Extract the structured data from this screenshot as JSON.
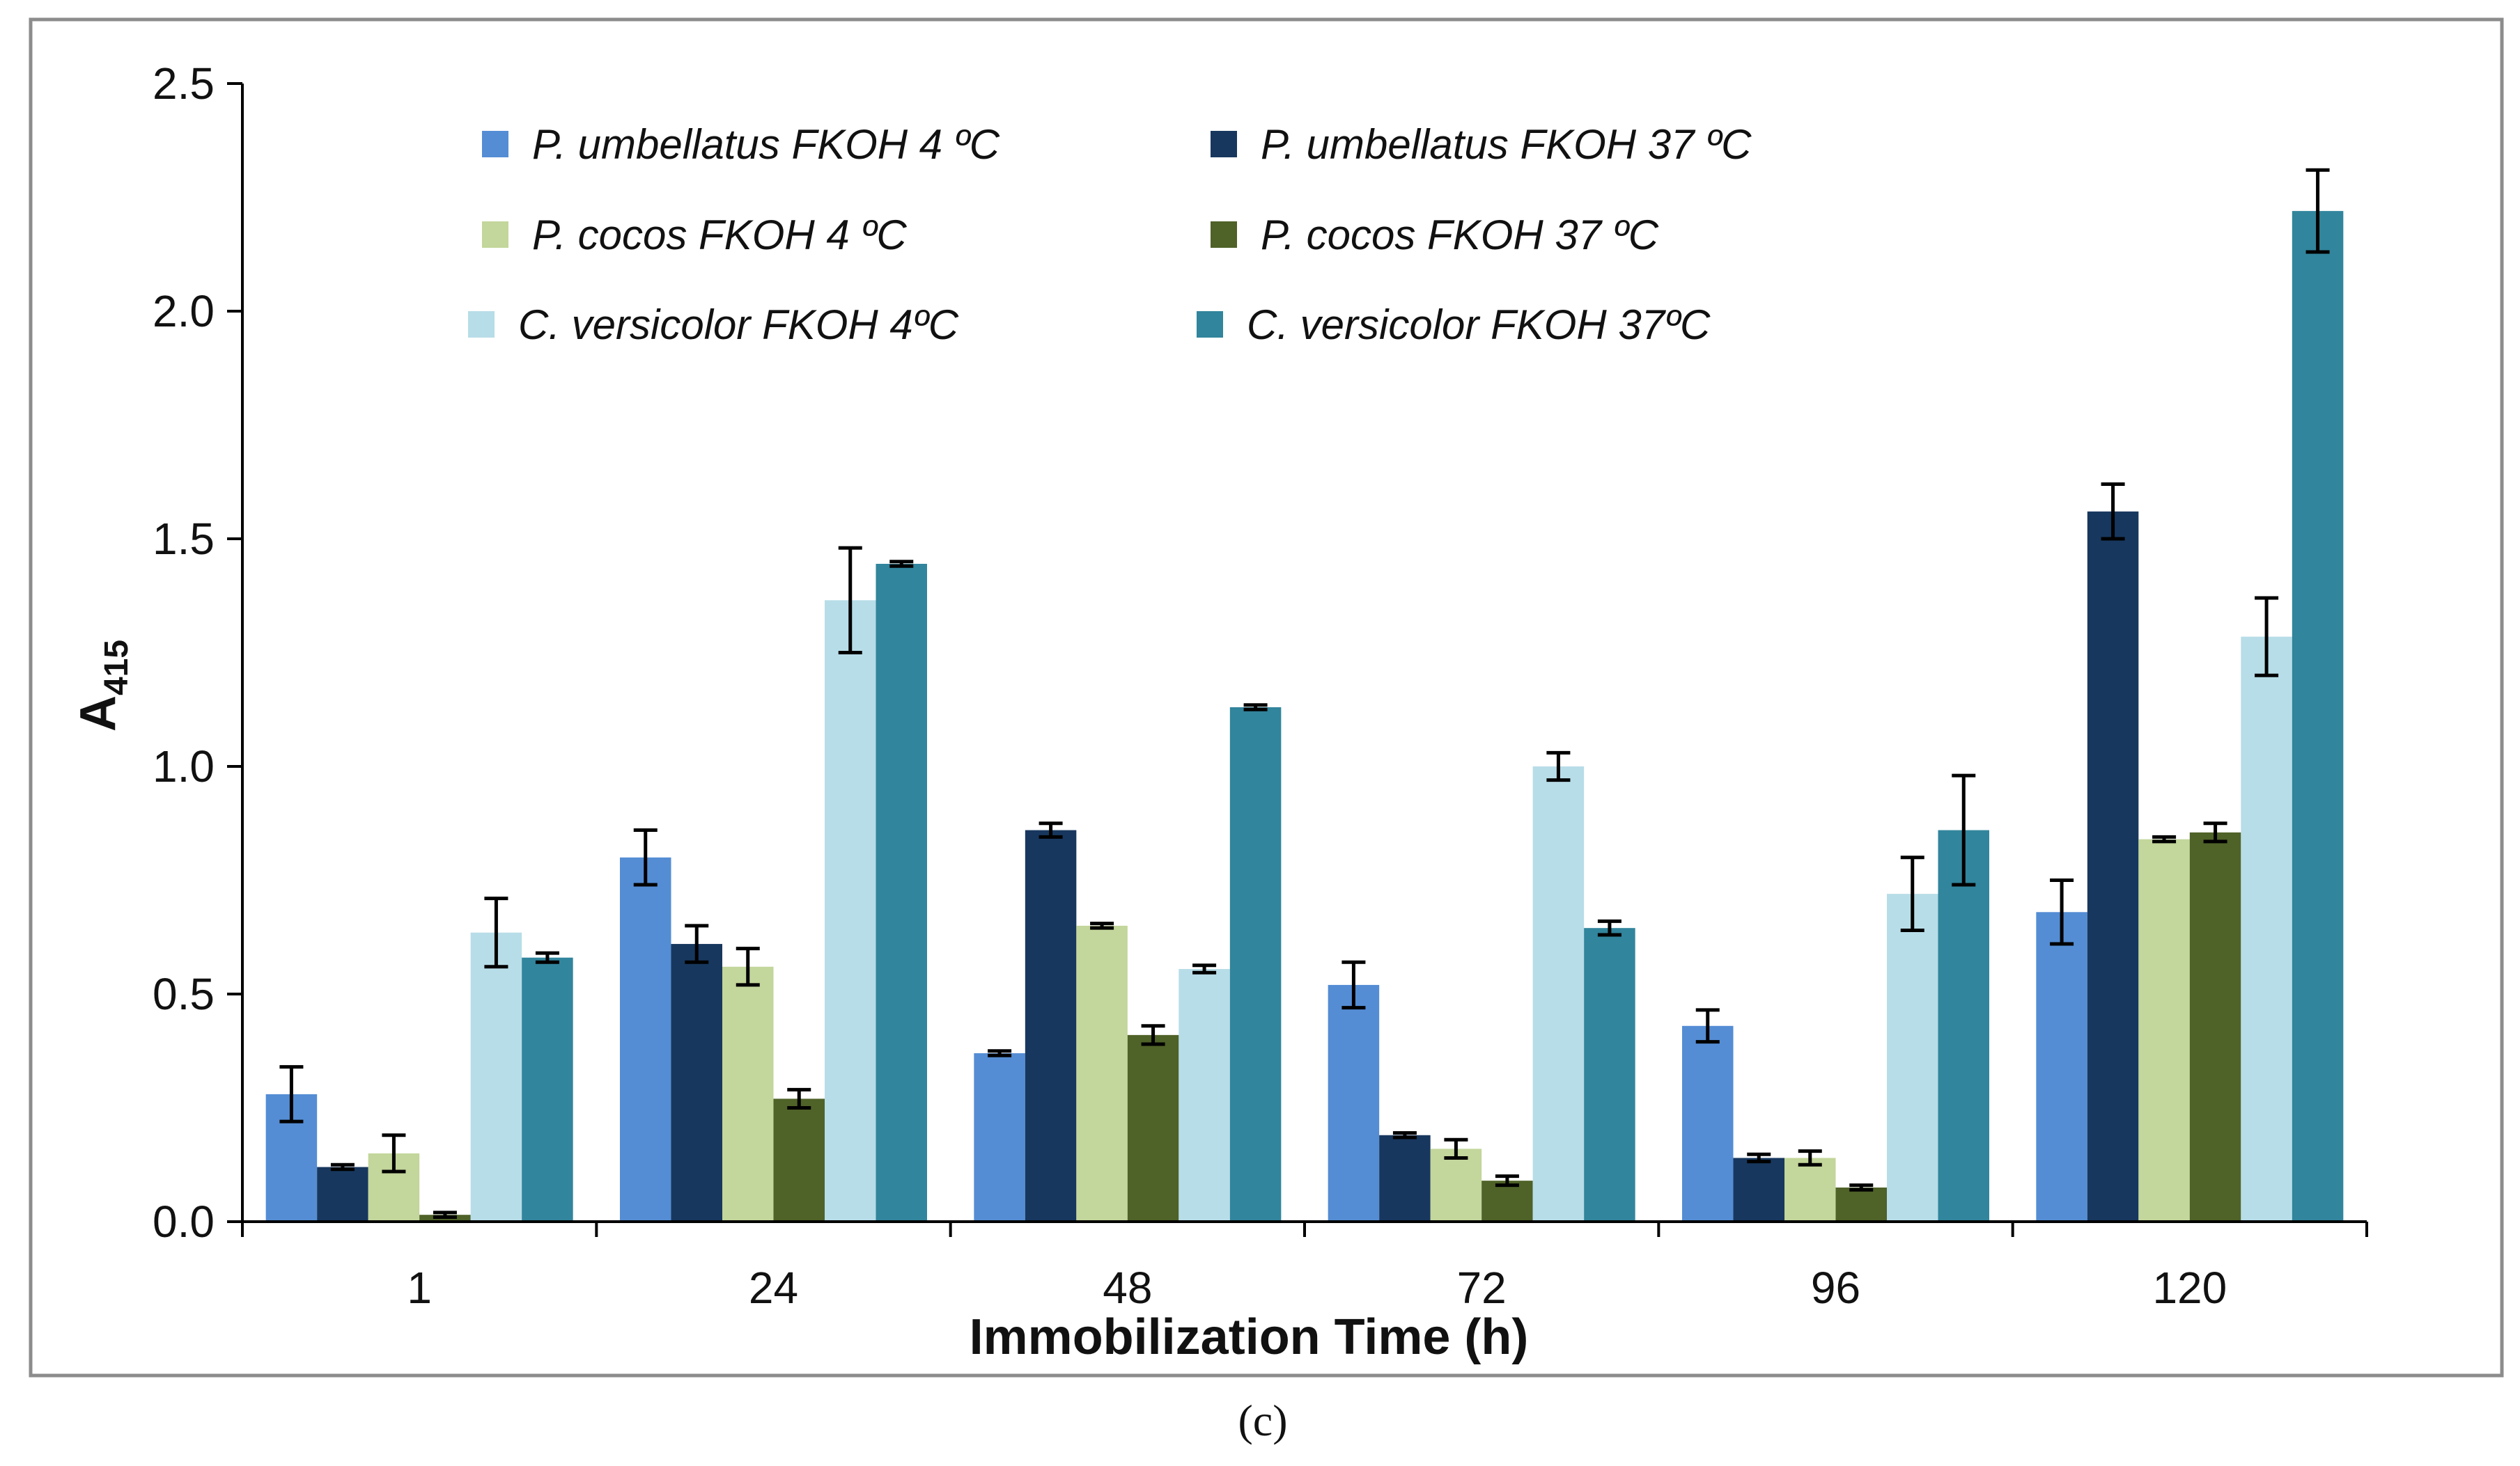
{
  "chart_data": {
    "type": "bar",
    "title": "",
    "xlabel": "Immobilization Time (h)",
    "ylabel_main": "A",
    "ylabel_sub": "415",
    "ylim": [
      0,
      2.5
    ],
    "yticks": [
      "0.0",
      "0.5",
      "1.0",
      "1.5",
      "2.0",
      "2.5"
    ],
    "ytick_values": [
      0,
      0.5,
      1.0,
      1.5,
      2.0,
      2.5
    ],
    "grid": false,
    "legend_position": "top-left",
    "categories": [
      "1",
      "24",
      "48",
      "72",
      "96",
      "120"
    ],
    "series": [
      {
        "name": "P. umbellatus FKOH 4 ºC",
        "color": "#548dd4",
        "values": [
          0.28,
          0.8,
          0.37,
          0.52,
          0.43,
          0.68
        ],
        "errors": [
          0.06,
          0.06,
          0.005,
          0.05,
          0.035,
          0.07
        ]
      },
      {
        "name": "P. umbellatus  FKOH 37 ºC",
        "color": "#17375e",
        "values": [
          0.12,
          0.61,
          0.86,
          0.19,
          0.14,
          1.56
        ],
        "errors": [
          0.005,
          0.04,
          0.015,
          0.005,
          0.008,
          0.06
        ]
      },
      {
        "name": "P. cocos FKOH 4 ºC",
        "color": "#c3d69b",
        "values": [
          0.15,
          0.56,
          0.65,
          0.16,
          0.14,
          0.84
        ],
        "errors": [
          0.04,
          0.04,
          0.005,
          0.02,
          0.015,
          0.005
        ]
      },
      {
        "name": "P. cocos FKOH 37 ºC",
        "color": "#4f6228",
        "values": [
          0.015,
          0.27,
          0.41,
          0.09,
          0.075,
          0.855
        ],
        "errors": [
          0.005,
          0.02,
          0.02,
          0.01,
          0.005,
          0.02
        ]
      },
      {
        "name": "C. versicolor FKOH 4ºC",
        "color": "#b7dde8",
        "values": [
          0.635,
          1.365,
          0.555,
          1.0,
          0.72,
          1.285
        ],
        "errors": [
          0.075,
          0.115,
          0.008,
          0.03,
          0.08,
          0.085
        ]
      },
      {
        "name": "C. versicolor FKOH 37ºC",
        "color": "#31859c",
        "values": [
          0.58,
          1.445,
          1.13,
          0.645,
          0.86,
          2.22
        ],
        "errors": [
          0.01,
          0.005,
          0.005,
          0.015,
          0.12,
          0.09
        ]
      }
    ]
  },
  "caption": "(c)"
}
